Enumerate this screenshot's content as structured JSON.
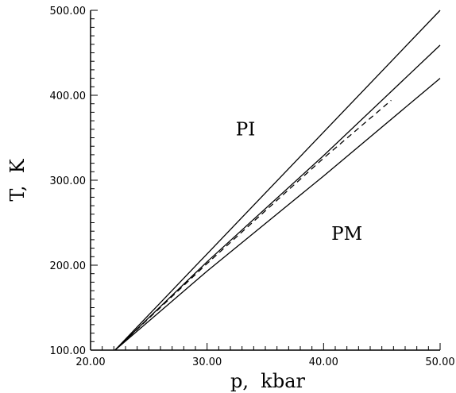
{
  "chart_data": {
    "type": "line",
    "xlabel": "p,  kbar",
    "ylabel": "T,  K",
    "xlim": [
      20,
      50
    ],
    "ylim": [
      100,
      500
    ],
    "x_ticks": [
      "20.00",
      "30.00",
      "40.00",
      "50.00"
    ],
    "y_ticks": [
      "100.00",
      "200.00",
      "300.00",
      "400.00",
      "500.00"
    ],
    "grid": false,
    "series": [
      {
        "style": "solid",
        "x": [
          22.1,
          50.0
        ],
        "y": [
          100,
          500
        ]
      },
      {
        "style": "solid",
        "x": [
          22.1,
          30.0,
          40.0,
          50.0
        ],
        "y": [
          100,
          204,
          329,
          459
        ]
      },
      {
        "style": "solid",
        "x": [
          22.1,
          30.0,
          40.0,
          50.0
        ],
        "y": [
          100,
          193,
          305,
          420
        ]
      },
      {
        "style": "dashed",
        "x": [
          22.1,
          30.0,
          40.0,
          45.8
        ],
        "y": [
          100,
          202,
          326,
          394
        ]
      }
    ],
    "annotations": [
      {
        "text": "PI",
        "x": 33.3,
        "y": 353
      },
      {
        "text": "PM",
        "x": 42.0,
        "y": 230
      }
    ]
  }
}
